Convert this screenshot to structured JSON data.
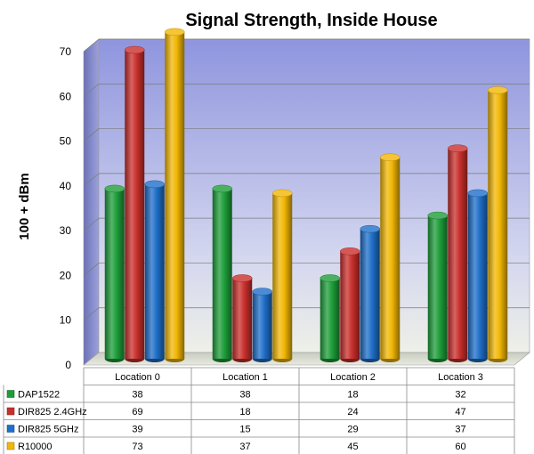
{
  "chart_data": {
    "type": "bar",
    "title": "Signal Strength, Inside House",
    "xlabel": "",
    "ylabel": "100 + dBm",
    "ylim": [
      0,
      70
    ],
    "yticks": [
      0,
      10,
      20,
      30,
      40,
      50,
      60,
      70
    ],
    "grid": true,
    "legend": "data-table",
    "categories": [
      "Location 0",
      "Location 1",
      "Location 2",
      "Location 3"
    ],
    "series": [
      {
        "name": "DAP1522",
        "color": "#1e9e3a",
        "values": [
          38,
          38,
          18,
          32
        ]
      },
      {
        "name": "DIR825 2.4GHz",
        "color": "#c9302c",
        "values": [
          69,
          18,
          24,
          47
        ]
      },
      {
        "name": "DIR825 5GHz",
        "color": "#1f6fc9",
        "values": [
          39,
          15,
          29,
          37
        ]
      },
      {
        "name": "R10000",
        "color": "#f2b705",
        "values": [
          73,
          37,
          45,
          60
        ]
      }
    ]
  }
}
